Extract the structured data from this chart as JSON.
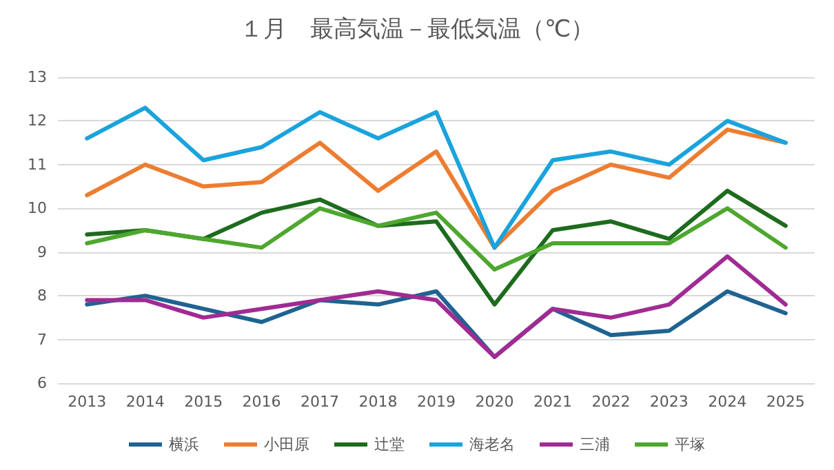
{
  "chart_data": {
    "type": "line",
    "title": "１月　最高気温－最低気温（℃）",
    "categories": [
      "2013",
      "2014",
      "2015",
      "2016",
      "2017",
      "2018",
      "2019",
      "2020",
      "2021",
      "2022",
      "2023",
      "2024",
      "2025"
    ],
    "series": [
      {
        "name": "横浜",
        "color": "#1f6391",
        "values": [
          7.8,
          8.0,
          7.7,
          7.4,
          7.9,
          7.8,
          8.1,
          6.6,
          7.7,
          7.1,
          7.2,
          8.1,
          7.6
        ]
      },
      {
        "name": "小田原",
        "color": "#ed7d31",
        "values": [
          10.3,
          11.0,
          10.5,
          10.6,
          11.5,
          10.4,
          11.3,
          9.1,
          10.4,
          11.0,
          10.7,
          11.8,
          11.5
        ]
      },
      {
        "name": "辻堂",
        "color": "#1e6b1e",
        "values": [
          9.4,
          9.5,
          9.3,
          9.9,
          10.2,
          9.6,
          9.7,
          7.8,
          9.5,
          9.7,
          9.3,
          10.4,
          9.6
        ]
      },
      {
        "name": "海老名",
        "color": "#1aa3dc",
        "values": [
          11.6,
          12.3,
          11.1,
          11.4,
          12.2,
          11.6,
          12.2,
          9.1,
          11.1,
          11.3,
          11.0,
          12.0,
          11.5
        ]
      },
      {
        "name": "三浦",
        "color": "#a02b93",
        "values": [
          7.9,
          7.9,
          7.5,
          7.7,
          7.9,
          8.1,
          7.9,
          6.6,
          7.7,
          7.5,
          7.8,
          8.9,
          7.8
        ]
      },
      {
        "name": "平塚",
        "color": "#4ea72e",
        "values": [
          9.2,
          9.5,
          9.3,
          9.1,
          10.0,
          9.6,
          9.9,
          8.6,
          9.2,
          9.2,
          9.2,
          10.0,
          9.1
        ]
      }
    ],
    "ylim": [
      6,
      13
    ],
    "yticks": [
      6,
      7,
      8,
      9,
      10,
      11,
      12,
      13
    ],
    "grid": "y",
    "legend": "bottom",
    "marker": "none",
    "line_style": "solid"
  }
}
